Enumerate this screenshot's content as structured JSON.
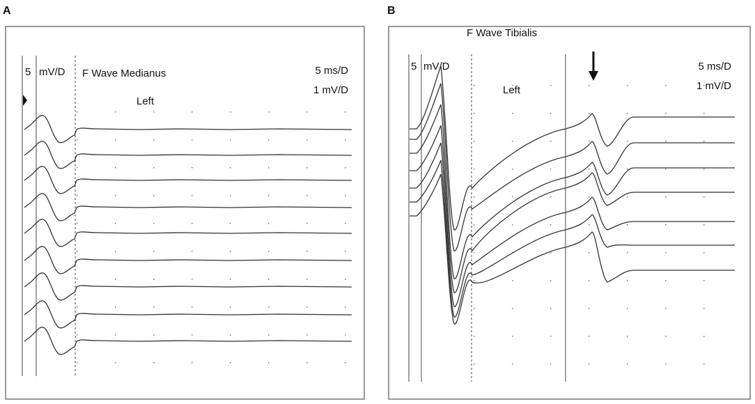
{
  "panels": [
    {
      "label": "A",
      "scale_number": "5",
      "scale_unit": "mV/D",
      "title": "F Wave Medianus",
      "side": "Left",
      "time_scale": "5 ms/D",
      "amp_scale": "1 mV/D"
    },
    {
      "label": "B",
      "scale_number": "5",
      "scale_unit": "mV/D",
      "title": "F Wave Tibialis",
      "side": "Left",
      "time_scale": "5 ms/D",
      "amp_scale": "1 mV/D"
    }
  ]
}
